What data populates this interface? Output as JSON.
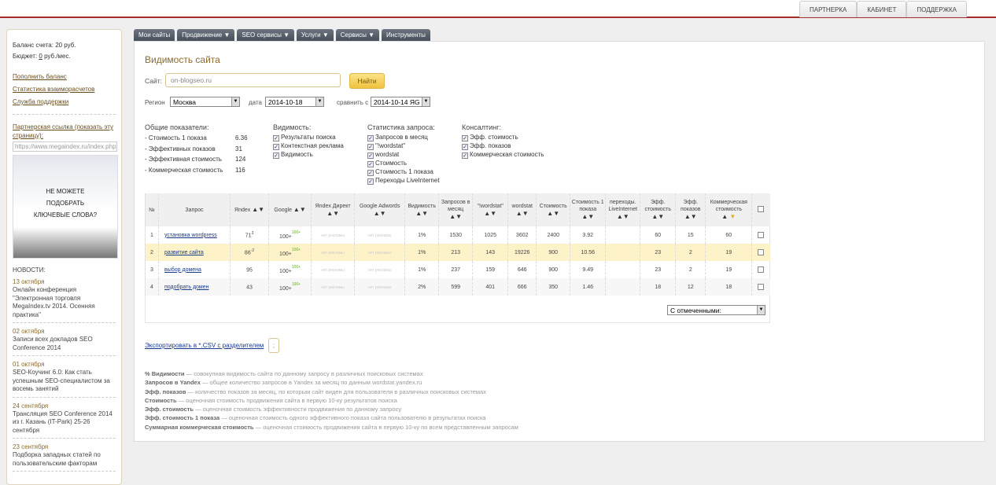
{
  "topnav": [
    "ПАРТНЕРКА",
    "КАБИНЕТ",
    "ПОДДЕРЖКА"
  ],
  "sidebar": {
    "balance": "Баланс счета: 20 руб.",
    "budget_prefix": "Бюджет: ",
    "budget_value": "0",
    "budget_suffix": " руб./мес.",
    "links": [
      "Пополнить баланс",
      "Статистика взаиморасчетов",
      "Служба поддержки"
    ],
    "partner_label": "Партнерская ссылка (показать эту страницу):",
    "partner_url": "https://www.megaindex.ru/index.php",
    "banner": [
      "НЕ МОЖЕТЕ",
      "ПОДОБРАТЬ",
      "КЛЮЧЕВЫЕ СЛОВА?"
    ],
    "news_title": "НОВОСТИ:",
    "news": [
      {
        "date": "13 октября",
        "text": "Онлайн конференция \"Электронная торговля MegaIndex.tv 2014. Осенняя практика\""
      },
      {
        "date": "02 октября",
        "text": "Записи всех докладов SEO Conference 2014"
      },
      {
        "date": "01 октября",
        "text": "SEO-Коучинг 6.0: Как стать успешным SEO-специалистом за восемь занятий"
      },
      {
        "date": "24 сентября",
        "text": "Трансляция SEO Conference 2014 из г. Казань (IT-Park) 25-26 сентября"
      },
      {
        "date": "23 сентября",
        "text": "Подборка западных статей по пользовательским факторам"
      }
    ]
  },
  "tabs": [
    "Мои сайты",
    "Продвижение ▼",
    "SEO сервисы ▼",
    "Услуги ▼",
    "Сервисы ▼",
    "Инструменты"
  ],
  "main": {
    "title": "Видимость сайта",
    "site_label": "Сайт:",
    "site_value": "on-blogseo.ru",
    "find": "Найти",
    "region_label": "Регион",
    "region": "Москва",
    "date_label": "дата",
    "date": "2014-10-18",
    "compare_label": "сравнить с",
    "compare": "2014-10-14 ЯG",
    "general": {
      "title": "Общие показатели:",
      "items": [
        [
          "- Стоимость 1 показа",
          "6.36"
        ],
        [
          "- Эффективных показов",
          "31"
        ],
        [
          "- Эффективная стоимость",
          "124"
        ],
        [
          "- Коммерческая стоимость",
          "116"
        ]
      ]
    },
    "visibility": {
      "title": "Видимость:",
      "items": [
        "Результаты поиска",
        "Контекстная реклама",
        "Видимость"
      ]
    },
    "stats": {
      "title": "Статистика запроса:",
      "items": [
        "Запросов в месяц",
        "\"!wordstat\"",
        "wordstat",
        "Стоимость",
        "Стоимость 1 показа",
        "Переходы LiveInternet"
      ]
    },
    "consult": {
      "title": "Консалтинг:",
      "items": [
        "Эфф. стоимость",
        "Эфф. показов",
        "Коммерческая стоимость"
      ]
    },
    "columns": [
      "№",
      "Запрос",
      "Яndex",
      "Google",
      "Яndex Директ",
      "Google Adwords",
      "Видимость",
      "Запросов в месяц",
      "\"!wordstat\"",
      "wordstat",
      "Стоимость",
      "Стоимость 1 показа",
      "переходы. LiveInternet",
      "Эфф. стоимость",
      "Эфф. показов",
      "Коммерческая стоимость"
    ],
    "no_ads": "нет рекламы",
    "rows": [
      {
        "n": "1",
        "q": "установка wordpress",
        "y": "71",
        "yd": "3",
        "g": "100+",
        "gd": "100+",
        "vis": "1%",
        "req": "1530",
        "ws1": "1025",
        "ws": "3602",
        "cost": "2400",
        "c1": "3.92",
        "li": "",
        "ec": "60",
        "ep": "15",
        "com": "60"
      },
      {
        "n": "2",
        "q": "развитие сайта",
        "y": "86",
        "yd": "-2",
        "g": "100+",
        "gd": "100+",
        "vis": "1%",
        "req": "213",
        "ws1": "143",
        "ws": "19226",
        "cost": "900",
        "c1": "10.56",
        "li": "",
        "ec": "23",
        "ep": "2",
        "com": "19"
      },
      {
        "n": "3",
        "q": "выбор домена",
        "y": "95",
        "yd": "",
        "g": "100+",
        "gd": "100+",
        "vis": "1%",
        "req": "237",
        "ws1": "159",
        "ws": "646",
        "cost": "900",
        "c1": "9.49",
        "li": "",
        "ec": "23",
        "ep": "2",
        "com": "19"
      },
      {
        "n": "4",
        "q": "подобрать домен",
        "y": "43",
        "yd": "",
        "g": "100+",
        "gd": "100+",
        "vis": "2%",
        "req": "599",
        "ws1": "401",
        "ws": "666",
        "cost": "350",
        "c1": "1.46",
        "li": "",
        "ec": "18",
        "ep": "12",
        "com": "18"
      }
    ],
    "bulk_select": "С отмеченными:",
    "export": "Экспортировать в *.CSV с разделителем",
    "separator": ";",
    "legend": [
      [
        "% Видимости",
        "совокупная видимость сайта по данному запросу в различных поисковых системах"
      ],
      [
        "Запросов в Yandex",
        "общее количество запросов в Yandex за месяц по данным wordstat.yandex.ru"
      ],
      [
        "Эфф. показов",
        "количество показов за месяц, по которым сайт виден для пользователя в различных поисковых системах"
      ],
      [
        "Стоимость",
        "оценочная стоимость продвижения сайта в первую 10-ку результатов поиска"
      ],
      [
        "Эфф. стоимость",
        "оценочная стоимость эффективности продвижения по данному запросу"
      ],
      [
        "Эфф. стоимость 1 показа",
        "оценочная стоимость одного эффективного показа сайта пользователю в результатах поиска"
      ],
      [
        "Суммарная коммерческая стоимость",
        "оценочная стоимость продвижения сайта в первую 10-ку по всем представленным запросам"
      ]
    ]
  }
}
